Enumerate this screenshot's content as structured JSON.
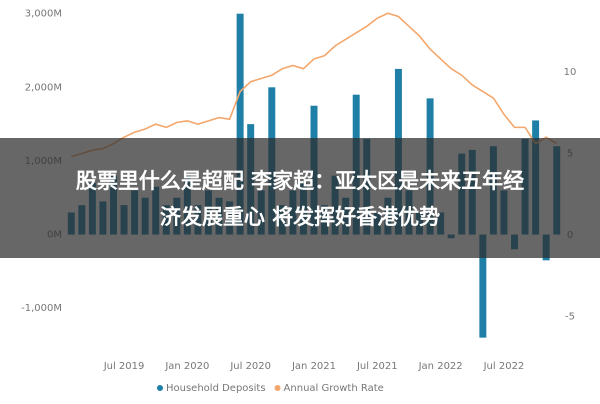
{
  "chart_data": {
    "type": "bar-line",
    "categories": [
      null,
      null,
      null,
      null,
      null,
      "Jul 2019",
      null,
      null,
      null,
      null,
      null,
      "Jan 2020",
      null,
      null,
      null,
      null,
      null,
      "Jul 2020",
      null,
      null,
      null,
      null,
      null,
      "Jan 2021",
      null,
      null,
      null,
      null,
      null,
      "Jul 2021",
      null,
      null,
      null,
      null,
      null,
      "Jan 2022",
      null,
      null,
      null,
      null,
      null,
      "Jul 2022",
      null,
      null,
      null,
      null,
      null
    ],
    "series": [
      {
        "name": "Household Deposits",
        "type": "bar",
        "color": "#1f7fa6",
        "values": [
          300,
          400,
          700,
          450,
          800,
          400,
          600,
          500,
          650,
          400,
          500,
          800,
          400,
          600,
          500,
          450,
          3000,
          1500,
          600,
          2000,
          400,
          600,
          700,
          1750,
          400,
          800,
          500,
          1900,
          1300,
          300,
          500,
          2250,
          600,
          300,
          1850,
          300,
          -50,
          1100,
          1150,
          -1400,
          1200,
          600,
          -200,
          1300,
          1550,
          -350,
          1200
        ]
      },
      {
        "name": "Annual Growth Rate",
        "type": "line",
        "axis": "y2",
        "color": "#f4a76c",
        "values": [
          4.8,
          5.0,
          5.2,
          5.3,
          5.6,
          6.0,
          6.3,
          6.5,
          6.8,
          6.6,
          6.9,
          7.0,
          6.8,
          7.0,
          7.2,
          7.1,
          8.8,
          9.4,
          9.6,
          9.8,
          10.2,
          10.4,
          10.2,
          10.8,
          11.0,
          11.6,
          12.0,
          12.4,
          12.8,
          13.3,
          13.6,
          13.4,
          12.8,
          12.2,
          11.4,
          10.8,
          10.2,
          9.8,
          9.2,
          8.8,
          8.4,
          7.4,
          6.6,
          6.6,
          5.6,
          6.0,
          5.6
        ]
      }
    ],
    "ylim": [
      -1500,
      3050
    ],
    "yticks": [
      {
        "value": -1000,
        "label": "-1,000M"
      },
      {
        "value": 0,
        "label": "0M"
      },
      {
        "value": 1000,
        "label": "1,000M"
      },
      {
        "value": 2000,
        "label": "2,000M"
      },
      {
        "value": 3000,
        "label": "3,000M"
      }
    ],
    "y2lim": [
      -6.75,
      13.8
    ],
    "y2ticks": [
      -5,
      0,
      5,
      10
    ],
    "legend": "bottom",
    "overlay_lines": [
      "股票里什么是超配 李家超：亚太区是未来五年经",
      "济发展重心 将发挥好香港优势"
    ]
  }
}
